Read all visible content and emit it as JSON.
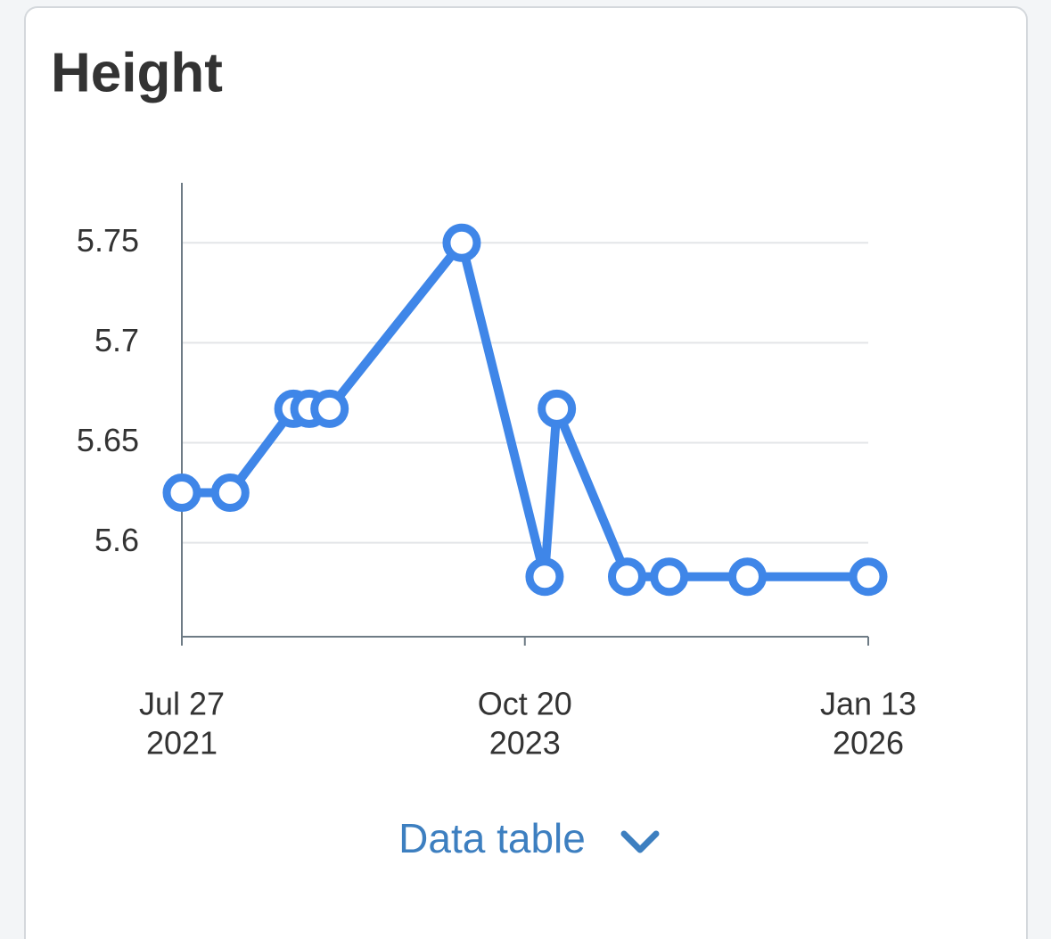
{
  "chart_data": {
    "type": "line",
    "title": "Height",
    "x": [
      "2021-07-27",
      "2021-11-19",
      "2022-04-18",
      "2022-05-26",
      "2022-07-13",
      "2023-05-23",
      "2023-12-06",
      "2024-01-04",
      "2024-06-19",
      "2024-09-27",
      "2025-04-01",
      "2026-01-13"
    ],
    "series": [
      {
        "color": "#3f86e8",
        "values": [
          5.625,
          5.625,
          5.667,
          5.667,
          5.667,
          5.75,
          5.583,
          5.667,
          5.583,
          5.583,
          5.583,
          5.583
        ]
      }
    ],
    "xlim": [
      "2021-07-27",
      "2026-01-13"
    ],
    "xticks": [
      {
        "value": "2021-07-27",
        "label": [
          "Jul 27",
          "2021"
        ]
      },
      {
        "value": "2023-10-20",
        "label": [
          "Oct 20",
          "2023"
        ]
      },
      {
        "value": "2026-01-13",
        "label": [
          "Jan 13",
          "2026"
        ]
      }
    ],
    "ylim": [
      5.553,
      5.78
    ],
    "yticks": [
      5.6,
      5.65,
      5.7,
      5.75
    ],
    "grid": true
  },
  "link": {
    "label": "Data table"
  }
}
